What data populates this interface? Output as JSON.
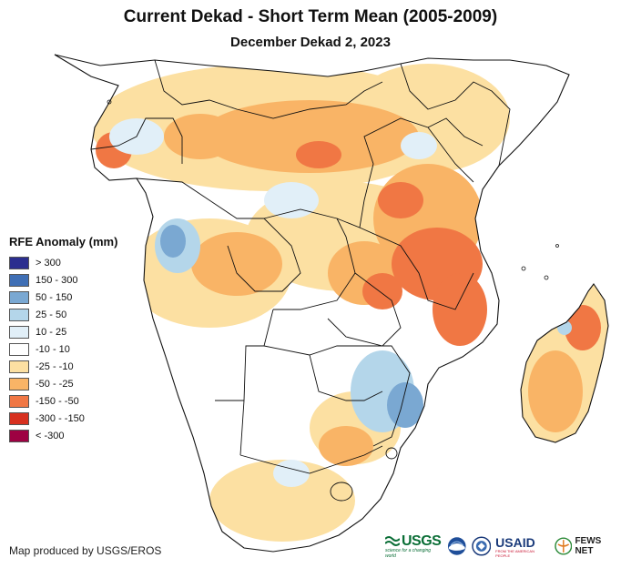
{
  "header": {
    "title": "Current Dekad - Short Term Mean (2005-2009)",
    "subtitle": "December Dekad 2, 2023"
  },
  "legend": {
    "title": "RFE Anomaly (mm)",
    "items": [
      {
        "label": "> 300",
        "color": "#2b2e8f"
      },
      {
        "label": "150 - 300",
        "color": "#3f6fb5"
      },
      {
        "label": "50 - 150",
        "color": "#7aa8d2"
      },
      {
        "label": "25 - 50",
        "color": "#b4d6ea"
      },
      {
        "label": "10 - 25",
        "color": "#e1eff8"
      },
      {
        "label": "-10 - 10",
        "color": "#ffffff"
      },
      {
        "label": "-25 - -10",
        "color": "#fce0a2"
      },
      {
        "label": "-50 - -25",
        "color": "#f9b466"
      },
      {
        "label": "-150 - -50",
        "color": "#f07744"
      },
      {
        "label": "-300 - -150",
        "color": "#d7301f"
      },
      {
        "label": "< -300",
        "color": "#9e0142"
      }
    ]
  },
  "footer": {
    "credit": "Map produced by USGS/EROS"
  },
  "logos": {
    "usgs": {
      "word": "USGS",
      "tagline": "science for a changing world"
    },
    "noaa": {
      "icon": "noaa-logo-icon"
    },
    "dept": {
      "icon": "state-seal-icon"
    },
    "usaid": {
      "word": "USAID",
      "tagline": "FROM THE AMERICAN PEOPLE"
    },
    "fews": {
      "word": "FEWS NET"
    }
  }
}
